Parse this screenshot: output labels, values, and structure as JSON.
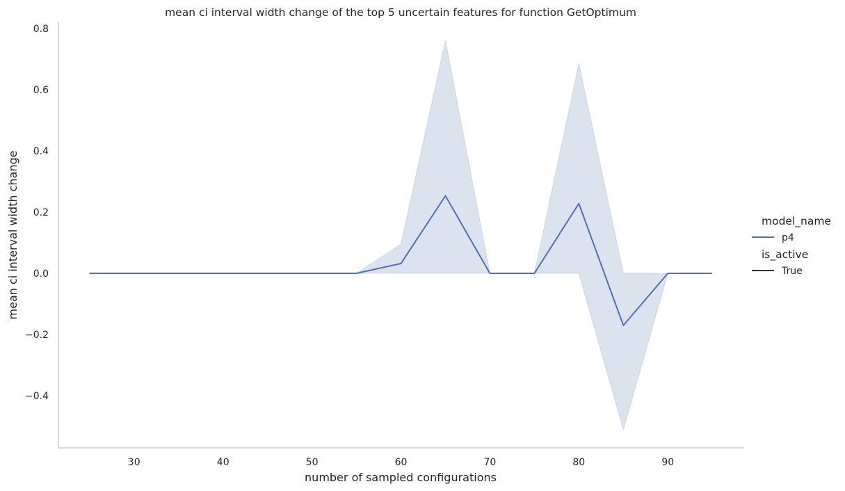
{
  "chart_data": {
    "type": "line",
    "title": "mean ci interval width change of the top 5 uncertain features for function GetOptimum",
    "xlabel": "number of sampled configurations",
    "ylabel": "mean ci interval width change",
    "xlim": [
      21.5,
      98.5
    ],
    "ylim": [
      -0.57,
      0.82
    ],
    "xticks": [
      30,
      40,
      50,
      60,
      70,
      80,
      90
    ],
    "xtick_labels": [
      "30",
      "40",
      "50",
      "60",
      "70",
      "80",
      "90"
    ],
    "yticks": [
      -0.4,
      -0.2,
      0.0,
      0.2,
      0.4,
      0.6,
      0.8
    ],
    "ytick_labels": [
      "−0.4",
      "−0.2",
      "0.0",
      "0.2",
      "0.4",
      "0.6",
      "0.8"
    ],
    "grid": false,
    "legend_position": "right",
    "colors": {
      "line": "#4c72b0",
      "band": "#4c72b0",
      "axis": "#cccccc",
      "text": "#262626",
      "style_line": "#333333"
    },
    "series": [
      {
        "name": "p4",
        "points": [
          {
            "x": 25,
            "y": 0.0,
            "lo": 0.0,
            "hi": 0.0
          },
          {
            "x": 30,
            "y": 0.0,
            "lo": 0.0,
            "hi": 0.0
          },
          {
            "x": 35,
            "y": 0.0,
            "lo": 0.0,
            "hi": 0.0
          },
          {
            "x": 40,
            "y": 0.0,
            "lo": 0.0,
            "hi": 0.0
          },
          {
            "x": 45,
            "y": 0.0,
            "lo": 0.0,
            "hi": 0.0
          },
          {
            "x": 50,
            "y": 0.0,
            "lo": 0.0,
            "hi": 0.0
          },
          {
            "x": 55,
            "y": 0.0,
            "lo": 0.0,
            "hi": 0.0
          },
          {
            "x": 60,
            "y": 0.032,
            "lo": 0.0,
            "hi": 0.095
          },
          {
            "x": 65,
            "y": 0.253,
            "lo": 0.0,
            "hi": 0.76
          },
          {
            "x": 70,
            "y": 0.0,
            "lo": 0.0,
            "hi": 0.0
          },
          {
            "x": 75,
            "y": 0.0,
            "lo": 0.0,
            "hi": 0.0
          },
          {
            "x": 80,
            "y": 0.228,
            "lo": 0.0,
            "hi": 0.685
          },
          {
            "x": 85,
            "y": -0.17,
            "lo": -0.51,
            "hi": 0.0
          },
          {
            "x": 90,
            "y": 0.0,
            "lo": 0.0,
            "hi": 0.0
          },
          {
            "x": 95,
            "y": 0.0,
            "lo": 0.0,
            "hi": 0.0
          }
        ]
      }
    ],
    "legend": {
      "hue_title": "model_name",
      "hue_entries": [
        "p4"
      ],
      "style_title": "is_active",
      "style_entries": [
        "True"
      ]
    }
  }
}
